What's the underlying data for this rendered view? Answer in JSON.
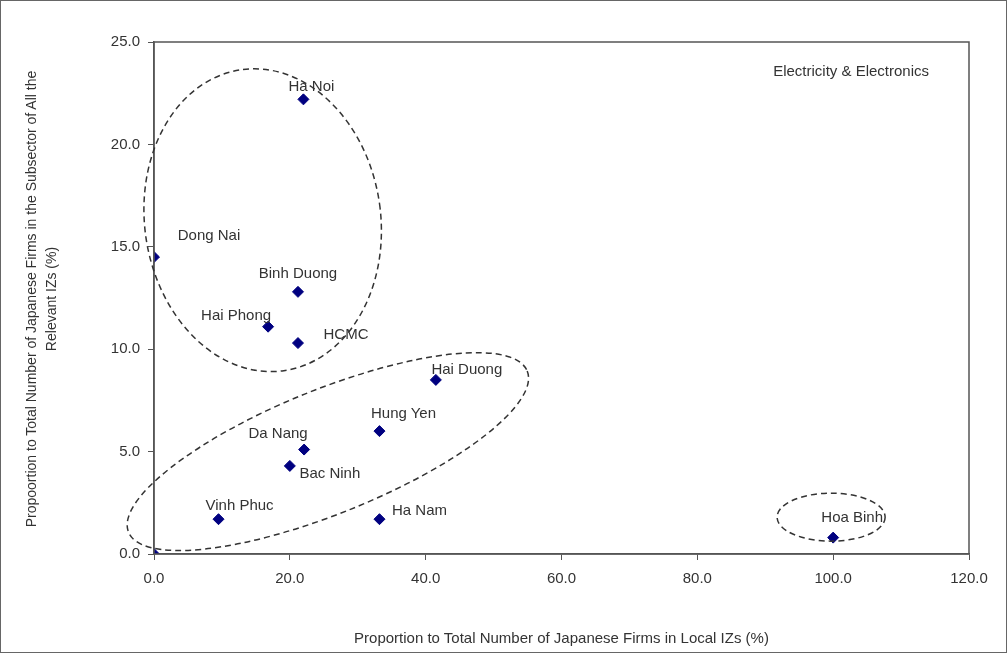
{
  "chart_data": {
    "type": "scatter",
    "xlabel": "Proportion to Total Number of Japanese Firms in Local IZs (%)",
    "ylabel": "Propoortion to Total Number of Japanese Firms in the Subsector of All the Relevant IZs (%)",
    "x": [
      0.0,
      22.0,
      0.0,
      21.2,
      16.8,
      21.2,
      41.5,
      33.2,
      22.1,
      20.0,
      9.5,
      33.2,
      100.0
    ],
    "series": [
      {
        "color": "#000080",
        "values": [
          0.0,
          22.2,
          14.5,
          12.8,
          11.1,
          10.3,
          8.5,
          6.0,
          5.1,
          4.3,
          1.7,
          1.7,
          0.8
        ]
      }
    ],
    "xlim": [
      0,
      120
    ],
    "xticks": [
      {
        "value": 0,
        "label": "0.0"
      },
      {
        "value": 20,
        "label": "20.0"
      },
      {
        "value": 40,
        "label": "40.0"
      },
      {
        "value": 60,
        "label": "60.0"
      },
      {
        "value": 80,
        "label": "80.0"
      },
      {
        "value": 100,
        "label": "100.0"
      },
      {
        "value": 120,
        "label": "120.0"
      }
    ],
    "ylim": [
      0,
      25
    ],
    "yticks": [
      {
        "value": 0,
        "label": "0.0"
      },
      {
        "value": 5,
        "label": "5.0"
      },
      {
        "value": 10,
        "label": "10.0"
      },
      {
        "value": 15,
        "label": "15.0"
      },
      {
        "value": 20,
        "label": "20.0"
      },
      {
        "value": 25,
        "label": "25.0"
      }
    ],
    "grid": false,
    "legend": false,
    "marker": "diamond",
    "annotations": [
      "Electricity & Electronics",
      {
        "text": "Ha Noi",
        "x": 22.0,
        "y": 22.2
      },
      {
        "text": "Dong Nai",
        "x": 0.0,
        "y": 14.5
      },
      {
        "text": "Binh Duong",
        "x": 21.2,
        "y": 12.8
      },
      {
        "text": "Hai Phong",
        "x": 16.8,
        "y": 11.1
      },
      {
        "text": "HCMC",
        "x": 21.2,
        "y": 10.3
      },
      {
        "text": "Hai Duong",
        "x": 41.5,
        "y": 8.5
      },
      {
        "text": "Hung Yen",
        "x": 33.2,
        "y": 6.0
      },
      {
        "text": "Da Nang",
        "x": 22.1,
        "y": 5.1
      },
      {
        "text": "Bac Ninh",
        "x": 20.0,
        "y": 4.3
      },
      {
        "text": "Vinh Phuc",
        "x": 9.5,
        "y": 1.7
      },
      {
        "text": "Ha Nam",
        "x": 33.2,
        "y": 1.7
      },
      {
        "text": "Hoa Binh",
        "x": 100.0,
        "y": 0.8
      }
    ]
  }
}
